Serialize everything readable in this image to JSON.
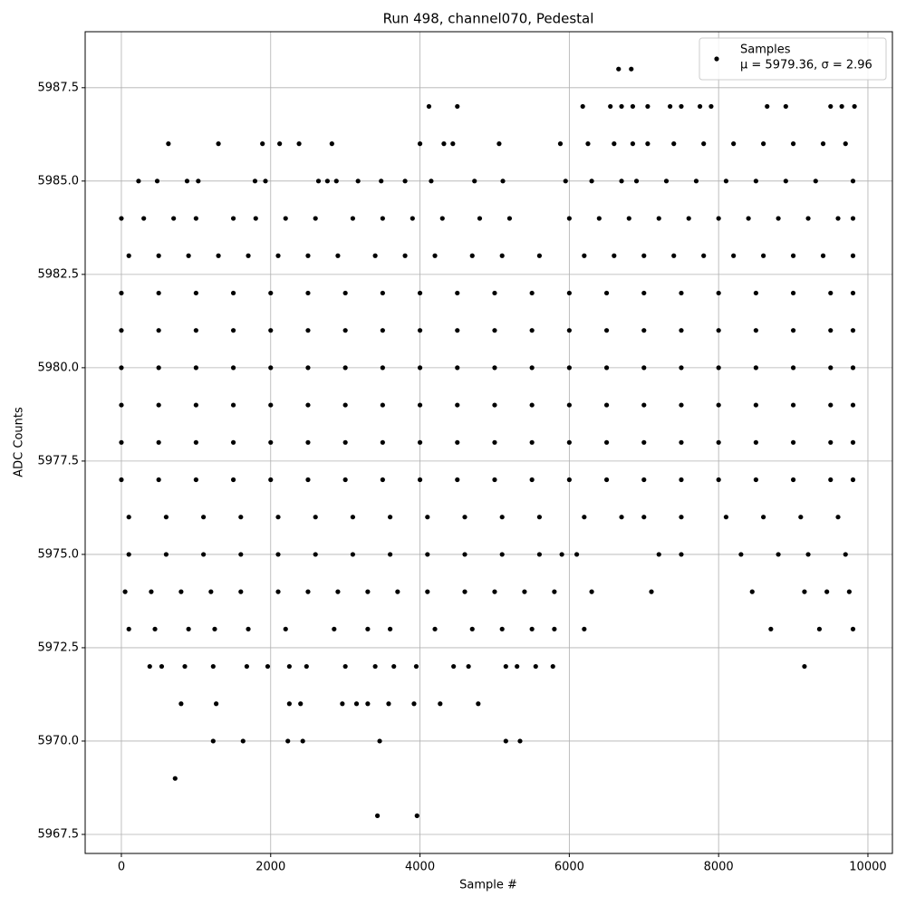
{
  "chart_data": {
    "type": "scatter",
    "title": "Run 498, channel070, Pedestal",
    "x_label": "Sample #",
    "y_label": "ADC Counts",
    "xlim": [
      -485,
      10328
    ],
    "xticks": [
      0,
      2000,
      4000,
      6000,
      8000,
      10000
    ],
    "ylim": [
      5966.99,
      5989.0
    ],
    "yticks": [
      5967.5,
      {
        "value": 5970,
        "label": "5970.0"
      },
      5972.5,
      {
        "value": 5975,
        "label": "5975.0"
      },
      5977.5,
      {
        "value": 5980,
        "label": "5980.0"
      },
      5982.5,
      {
        "value": 5985,
        "label": "5985.0"
      },
      5987.5
    ],
    "grid": true,
    "legend": "upper right",
    "x": [
      0,
      500,
      1000,
      1500,
      2000,
      2500,
      3000,
      3500,
      4000,
      4500,
      5000,
      5500,
      6000,
      6500,
      7000,
      7500,
      8000,
      8500,
      9000,
      9500,
      9800,
      0,
      500,
      1000,
      1500,
      2000,
      2500,
      3000,
      3500,
      4000,
      4500,
      5000,
      5500,
      6000,
      6500,
      7000,
      7500,
      8000,
      8500,
      9000,
      9500,
      9800,
      0,
      500,
      1000,
      1500,
      2000,
      2500,
      3000,
      3500,
      4000,
      4500,
      5000,
      5500,
      6000,
      6500,
      7000,
      7500,
      8000,
      8500,
      9000,
      9500,
      9800,
      0,
      500,
      1000,
      1500,
      2000,
      2500,
      3000,
      3500,
      4000,
      4500,
      5000,
      5500,
      6000,
      6500,
      7000,
      7500,
      8000,
      8500,
      9000,
      9500,
      9800,
      0,
      500,
      1000,
      1500,
      2000,
      2500,
      3000,
      3500,
      4000,
      4500,
      5000,
      5500,
      6000,
      6500,
      7000,
      7500,
      8000,
      8500,
      9000,
      9500,
      9800,
      0,
      500,
      1000,
      1500,
      2000,
      2500,
      3000,
      3500,
      4000,
      4500,
      5000,
      5500,
      6000,
      6500,
      7000,
      7500,
      8000,
      8500,
      9000,
      9500,
      9800,
      100,
      600,
      1100,
      1600,
      2100,
      2600,
      3100,
      3600,
      4100,
      4600,
      5100,
      5600,
      6200,
      6700,
      7000,
      7500,
      8100,
      8600,
      9100,
      9600,
      100,
      600,
      1100,
      1600,
      2100,
      2600,
      3100,
      3600,
      4100,
      4600,
      5100,
      5600,
      5900,
      6100,
      7200,
      7500,
      8300,
      8800,
      9200,
      9700,
      0,
      300,
      700,
      1000,
      1500,
      1800,
      2200,
      2600,
      3100,
      3500,
      3900,
      4300,
      4800,
      5200,
      6000,
      6400,
      6800,
      7200,
      7600,
      8000,
      8400,
      8800,
      9200,
      9600,
      9800,
      100,
      500,
      900,
      1300,
      1700,
      2100,
      2500,
      2900,
      3400,
      3800,
      4200,
      4700,
      5100,
      5600,
      6200,
      6600,
      7000,
      7400,
      7800,
      8200,
      8600,
      9000,
      9400,
      9800,
      50,
      400,
      800,
      1200,
      1600,
      2100,
      2500,
      2900,
      3300,
      3700,
      4100,
      4600,
      5000,
      5400,
      5800,
      6300,
      7100,
      8450,
      9150,
      9450,
      9750,
      100,
      450,
      900,
      1250,
      1700,
      2200,
      2850,
      3300,
      3600,
      4200,
      4700,
      5100,
      5500,
      5800,
      6200,
      8700,
      9350,
      9800,
      380,
      540,
      850,
      1230,
      1680,
      1960,
      2250,
      2480,
      3000,
      3400,
      3650,
      3950,
      4450,
      4650,
      5150,
      5300,
      5550,
      5780,
      9150,
      800,
      1270,
      2250,
      2400,
      2960,
      3150,
      3300,
      3580,
      3920,
      4270,
      4780,
      1230,
      1630,
      2230,
      2430,
      3460,
      5150,
      5340,
      720,
      3430,
      3960,
      230,
      480,
      880,
      1030,
      1790,
      1930,
      2640,
      2760,
      2880,
      3170,
      3480,
      3800,
      4150,
      4730,
      5110,
      5950,
      6300,
      6700,
      6900,
      7300,
      7700,
      8100,
      8500,
      8900,
      9300,
      9800,
      630,
      1300,
      1890,
      2120,
      2380,
      2820,
      4000,
      4320,
      4440,
      5060,
      5880,
      6250,
      6600,
      6850,
      7050,
      7400,
      7800,
      8200,
      8600,
      9000,
      9400,
      9700,
      4120,
      4500,
      6180,
      6550,
      6700,
      6850,
      7050,
      7350,
      7500,
      7750,
      7900,
      8650,
      8900,
      9500,
      9650,
      9820,
      6660,
      6830
    ],
    "series": [
      {
        "name": "Samples",
        "legend_text": "μ = 5979.36, σ = 2.96",
        "color": "#000000",
        "values": [
          5982,
          5982,
          5982,
          5982,
          5982,
          5982,
          5982,
          5982,
          5982,
          5982,
          5982,
          5982,
          5982,
          5982,
          5982,
          5982,
          5982,
          5982,
          5982,
          5982,
          5982,
          5981,
          5981,
          5981,
          5981,
          5981,
          5981,
          5981,
          5981,
          5981,
          5981,
          5981,
          5981,
          5981,
          5981,
          5981,
          5981,
          5981,
          5981,
          5981,
          5981,
          5981,
          5980,
          5980,
          5980,
          5980,
          5980,
          5980,
          5980,
          5980,
          5980,
          5980,
          5980,
          5980,
          5980,
          5980,
          5980,
          5980,
          5980,
          5980,
          5980,
          5980,
          5980,
          5979,
          5979,
          5979,
          5979,
          5979,
          5979,
          5979,
          5979,
          5979,
          5979,
          5979,
          5979,
          5979,
          5979,
          5979,
          5979,
          5979,
          5979,
          5979,
          5979,
          5979,
          5978,
          5978,
          5978,
          5978,
          5978,
          5978,
          5978,
          5978,
          5978,
          5978,
          5978,
          5978,
          5978,
          5978,
          5978,
          5978,
          5978,
          5978,
          5978,
          5978,
          5978,
          5977,
          5977,
          5977,
          5977,
          5977,
          5977,
          5977,
          5977,
          5977,
          5977,
          5977,
          5977,
          5977,
          5977,
          5977,
          5977,
          5977,
          5977,
          5977,
          5977,
          5977,
          5976,
          5976,
          5976,
          5976,
          5976,
          5976,
          5976,
          5976,
          5976,
          5976,
          5976,
          5976,
          5976,
          5976,
          5976,
          5976,
          5976,
          5976,
          5976,
          5976,
          5975,
          5975,
          5975,
          5975,
          5975,
          5975,
          5975,
          5975,
          5975,
          5975,
          5975,
          5975,
          5975,
          5975,
          5975,
          5975,
          5975,
          5975,
          5975,
          5975,
          5984,
          5984,
          5984,
          5984,
          5984,
          5984,
          5984,
          5984,
          5984,
          5984,
          5984,
          5984,
          5984,
          5984,
          5984,
          5984,
          5984,
          5984,
          5984,
          5984,
          5984,
          5984,
          5984,
          5984,
          5984,
          5983,
          5983,
          5983,
          5983,
          5983,
          5983,
          5983,
          5983,
          5983,
          5983,
          5983,
          5983,
          5983,
          5983,
          5983,
          5983,
          5983,
          5983,
          5983,
          5983,
          5983,
          5983,
          5983,
          5983,
          5974,
          5974,
          5974,
          5974,
          5974,
          5974,
          5974,
          5974,
          5974,
          5974,
          5974,
          5974,
          5974,
          5974,
          5974,
          5974,
          5974,
          5974,
          5974,
          5974,
          5974,
          5973,
          5973,
          5973,
          5973,
          5973,
          5973,
          5973,
          5973,
          5973,
          5973,
          5973,
          5973,
          5973,
          5973,
          5973,
          5973,
          5973,
          5973,
          5972,
          5972,
          5972,
          5972,
          5972,
          5972,
          5972,
          5972,
          5972,
          5972,
          5972,
          5972,
          5972,
          5972,
          5972,
          5972,
          5972,
          5972,
          5972,
          5971,
          5971,
          5971,
          5971,
          5971,
          5971,
          5971,
          5971,
          5971,
          5971,
          5971,
          5970,
          5970,
          5970,
          5970,
          5970,
          5970,
          5970,
          5969,
          5968,
          5968,
          5985,
          5985,
          5985,
          5985,
          5985,
          5985,
          5985,
          5985,
          5985,
          5985,
          5985,
          5985,
          5985,
          5985,
          5985,
          5985,
          5985,
          5985,
          5985,
          5985,
          5985,
          5985,
          5985,
          5985,
          5985,
          5985,
          5986,
          5986,
          5986,
          5986,
          5986,
          5986,
          5986,
          5986,
          5986,
          5986,
          5986,
          5986,
          5986,
          5986,
          5986,
          5986,
          5986,
          5986,
          5986,
          5986,
          5986,
          5986,
          5987,
          5987,
          5987,
          5987,
          5987,
          5987,
          5987,
          5987,
          5987,
          5987,
          5987,
          5987,
          5987,
          5987,
          5987,
          5987,
          5988,
          5988
        ]
      }
    ]
  }
}
